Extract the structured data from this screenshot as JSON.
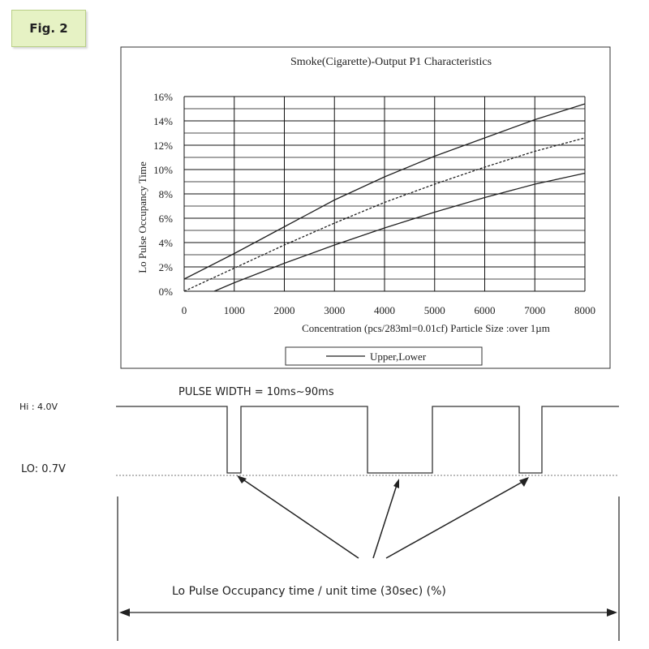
{
  "figure_label": "Fig. 2",
  "chart_data": {
    "type": "line",
    "title": "Smoke(Cigarette)-Output P1 Characteristics",
    "xlabel": "Concentration (pcs/283ml=0.01cf) Particle Size :over 1µm",
    "ylabel": "Lo Pulse Occupancy Time",
    "xlim": [
      0,
      8000
    ],
    "ylim": [
      0,
      16
    ],
    "x_ticks": [
      "0",
      "1000",
      "2000",
      "3000",
      "4000",
      "5000",
      "6000",
      "7000",
      "8000"
    ],
    "y_ticks": [
      "0%",
      "2%",
      "4%",
      "6%",
      "8%",
      "10%",
      "12%",
      "14%",
      "16%"
    ],
    "grid": true,
    "legend": {
      "position": "bottom-center",
      "label": "Upper,Lower"
    },
    "series": [
      {
        "name": "",
        "style": "solid",
        "x": [
          0,
          1000,
          2000,
          3000,
          4000,
          5000,
          6000,
          7000,
          8000
        ],
        "y": [
          1.0,
          3.1,
          5.3,
          7.5,
          9.4,
          11.1,
          12.6,
          14.1,
          15.4
        ]
      },
      {
        "name": "",
        "style": "dashed",
        "x": [
          0,
          1000,
          2000,
          3000,
          4000,
          5000,
          6000,
          7000,
          8000
        ],
        "y": [
          0.0,
          1.9,
          3.8,
          5.6,
          7.3,
          8.8,
          10.2,
          11.5,
          12.6
        ]
      },
      {
        "name": "",
        "style": "solid",
        "x": [
          600,
          1000,
          2000,
          3000,
          4000,
          5000,
          6000,
          7000,
          8000
        ],
        "y": [
          0.0,
          0.7,
          2.3,
          3.8,
          5.2,
          6.5,
          7.7,
          8.8,
          9.7
        ]
      }
    ]
  },
  "pulse_diagram": {
    "pulse_width_text": "PULSE WIDTH = 10ms~90ms",
    "hi_label": "Hi : 4.0V",
    "lo_label": "LO: 0.7V",
    "occupancy_text": "Lo Pulse Occupancy time / unit time (30sec) (%)"
  },
  "colors": {
    "line": "#222222",
    "grid": "#111111",
    "label_bg": "#e6f2c4"
  }
}
